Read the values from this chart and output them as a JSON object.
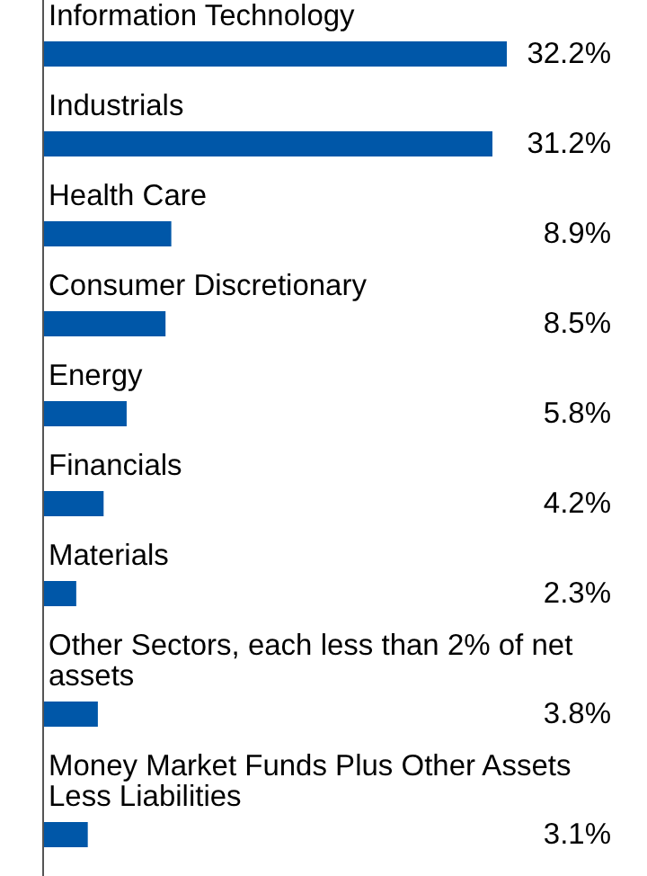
{
  "chart_data": {
    "type": "bar",
    "orientation": "horizontal",
    "categories": [
      "Information Technology",
      "Industrials",
      "Health Care",
      "Consumer Discretionary",
      "Energy",
      "Financials",
      "Materials",
      "Other Sectors, each less than 2% of net assets",
      "Money Market Funds Plus Other Assets Less Liabilities"
    ],
    "values": [
      32.2,
      31.2,
      8.9,
      8.5,
      5.8,
      4.2,
      2.3,
      3.8,
      3.1
    ],
    "value_labels": [
      "32.2%",
      "31.2%",
      "8.9%",
      "8.5%",
      "5.8%",
      "4.2%",
      "2.3%",
      "3.8%",
      "3.1%"
    ],
    "color": "#0057a8"
  }
}
